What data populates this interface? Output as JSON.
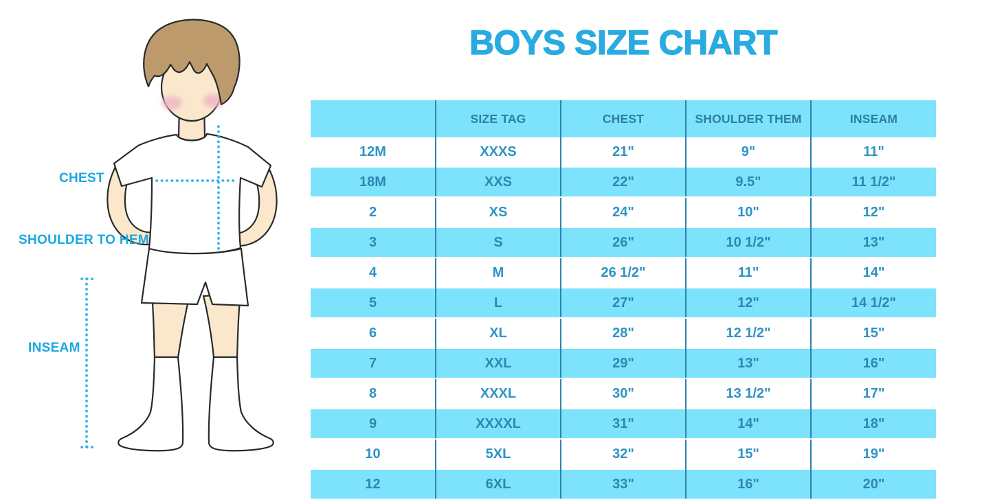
{
  "title": "BOYS SIZE CHART",
  "illustration": {
    "figure": "boy wearing white t-shirt, shorts and knee socks with dotted measurement guides",
    "labels": {
      "chest": "CHEST",
      "shoulder_to_hem": "SHOULDER TO HEM",
      "inseam": "INSEAM"
    }
  },
  "table": {
    "headers": [
      "",
      "SIZE TAG",
      "CHEST",
      "SHOULDER THEM",
      "INSEAM"
    ],
    "rows": [
      [
        "12M",
        "XXXS",
        "21\"",
        "9\"",
        "11\""
      ],
      [
        "18M",
        "XXS",
        "22\"",
        "9.5\"",
        "11 1/2\""
      ],
      [
        "2",
        "XS",
        "24\"",
        "10\"",
        "12\""
      ],
      [
        "3",
        "S",
        "26\"",
        "10 1/2\"",
        "13\""
      ],
      [
        "4",
        "M",
        "26 1/2\"",
        "11\"",
        "14\""
      ],
      [
        "5",
        "L",
        "27\"",
        "12\"",
        "14 1/2\""
      ],
      [
        "6",
        "XL",
        "28\"",
        "12 1/2\"",
        "15\""
      ],
      [
        "7",
        "XXL",
        "29\"",
        "13\"",
        "16\""
      ],
      [
        "8",
        "XXXL",
        "30\"",
        "13 1/2\"",
        "17\""
      ],
      [
        "9",
        "XXXXL",
        "31\"",
        "14\"",
        "18\""
      ],
      [
        "10",
        "5XL",
        "32\"",
        "15\"",
        "19\""
      ],
      [
        "12",
        "6XL",
        "33\"",
        "16\"",
        "20\""
      ]
    ]
  },
  "chart_data": {
    "type": "table",
    "title": "BOYS SIZE CHART",
    "columns": [
      "",
      "SIZE TAG",
      "CHEST",
      "SHOULDER THEM",
      "INSEAM"
    ],
    "rows": [
      [
        "12M",
        "XXXS",
        "21\"",
        "9\"",
        "11\""
      ],
      [
        "18M",
        "XXS",
        "22\"",
        "9.5\"",
        "11 1/2\""
      ],
      [
        "2",
        "XS",
        "24\"",
        "10\"",
        "12\""
      ],
      [
        "3",
        "S",
        "26\"",
        "10 1/2\"",
        "13\""
      ],
      [
        "4",
        "M",
        "26 1/2\"",
        "11\"",
        "14\""
      ],
      [
        "5",
        "L",
        "27\"",
        "12\"",
        "14 1/2\""
      ],
      [
        "6",
        "XL",
        "28\"",
        "12 1/2\"",
        "15\""
      ],
      [
        "7",
        "XXL",
        "29\"",
        "13\"",
        "16\""
      ],
      [
        "8",
        "XXXL",
        "30\"",
        "13 1/2\"",
        "17\""
      ],
      [
        "9",
        "XXXXL",
        "31\"",
        "14\"",
        "18\""
      ],
      [
        "10",
        "5XL",
        "32\"",
        "15\"",
        "19\""
      ],
      [
        "12",
        "6XL",
        "33\"",
        "16\"",
        "20\""
      ]
    ],
    "layout_hints": {
      "striped_rows": true,
      "stripe_color": "#7DE2FB",
      "equal_column_widths": true,
      "legend_position": "none",
      "grid": "vertical-dividers-only"
    }
  },
  "colors": {
    "title": "#29ABE2",
    "label": "#1BA7E2",
    "stripe": "#7DE2FB",
    "header_bg": "#7DE2FB",
    "divider": "#2B84B0",
    "table_text": "#2E93C4",
    "header_text": "#2B7FA6",
    "dotted_line": "#29B2E8",
    "skin": "#FBE8CC",
    "hair": "#BC9A6C",
    "blush": "#EFB4C3"
  }
}
